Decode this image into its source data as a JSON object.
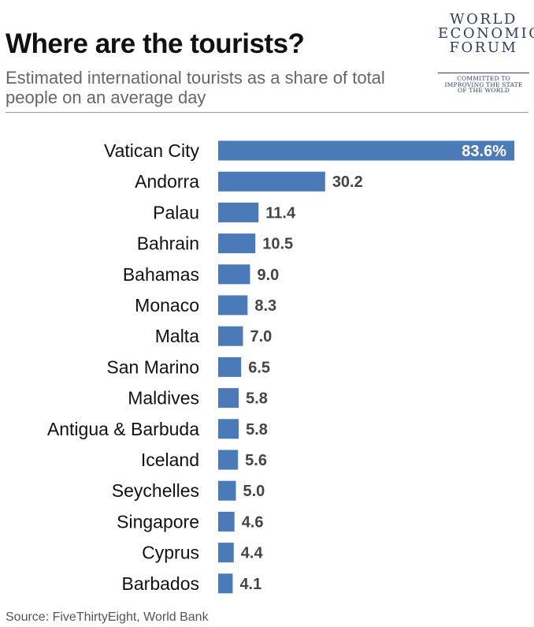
{
  "header": {
    "title": "Where are the tourists?",
    "subtitle": "Estimated international tourists as a share of total people on an average day"
  },
  "logo": {
    "name_lines": [
      "WORLD",
      "ECONOMIC",
      "FORUM"
    ],
    "tagline_lines": [
      "COMMITTED TO",
      "IMPROVING THE STATE",
      "OF THE WORLD"
    ],
    "color": "#2c3e66"
  },
  "source": "Source: FiveThirtyEight, World Bank",
  "chart_data": {
    "type": "bar",
    "orientation": "horizontal",
    "title": "Where are the tourists?",
    "subtitle": "Estimated international tourists as a share of total people on an average day",
    "categories": [
      "Vatican City",
      "Andorra",
      "Palau",
      "Bahrain",
      "Bahamas",
      "Monaco",
      "Malta",
      "San Marino",
      "Maldives",
      "Antigua & Barbuda",
      "Iceland",
      "Seychelles",
      "Singapore",
      "Cyprus",
      "Barbados"
    ],
    "values": [
      83.6,
      30.2,
      11.4,
      10.5,
      9.0,
      8.3,
      7.0,
      6.5,
      5.8,
      5.8,
      5.6,
      5.0,
      4.6,
      4.4,
      4.1
    ],
    "value_labels": [
      "83.6%",
      "30.2",
      "11.4",
      "10.5",
      "9.0",
      "8.3",
      "7.0",
      "6.5",
      "5.8",
      "5.8",
      "5.6",
      "5.0",
      "4.6",
      "4.4",
      "4.1"
    ],
    "unit": "%",
    "xlim": [
      0,
      83.6
    ],
    "grid": false,
    "legend": "none",
    "bar_color": "#4a7ab8"
  }
}
